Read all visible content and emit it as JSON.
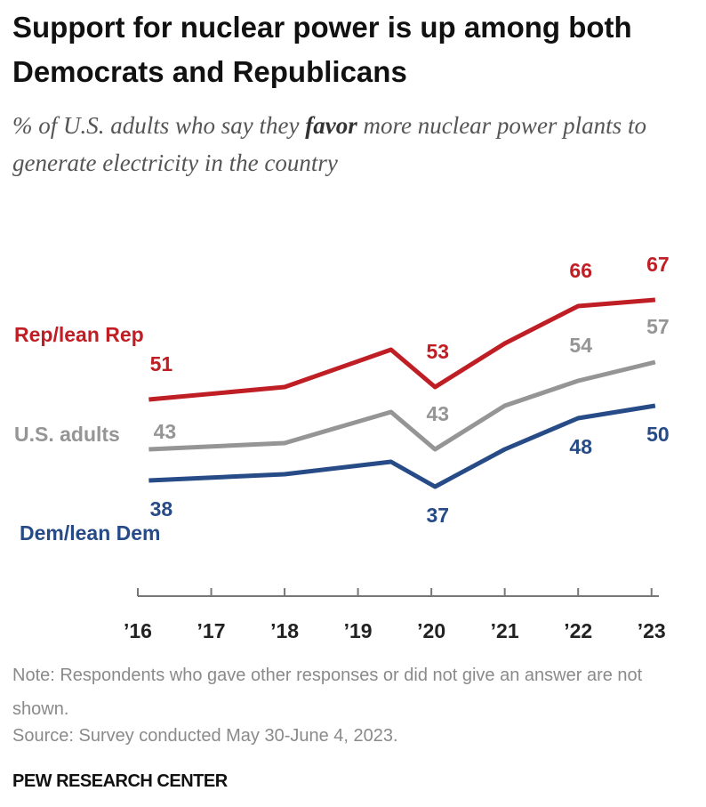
{
  "chart_data": {
    "type": "line",
    "title": "Support for nuclear power is up among both Democrats and Republicans",
    "subtitle": [
      "% of U.S. adults who say they ",
      "favor",
      " more nuclear power plants to generate electricity in the country"
    ],
    "x": [
      2016.15,
      2018,
      2019.45,
      2020.05,
      2021,
      2022,
      2023.05
    ],
    "series": [
      {
        "name": "Rep/lean Rep",
        "color": "#bf1e24",
        "values": [
          51,
          53,
          59,
          53,
          60,
          66,
          67
        ]
      },
      {
        "name": "U.S. adults",
        "color": "#959595",
        "values": [
          43,
          44,
          49,
          43,
          50,
          54,
          57
        ]
      },
      {
        "name": "Dem/lean Dem",
        "color": "#264b87",
        "values": [
          38,
          39,
          41,
          37,
          43,
          48,
          50
        ]
      }
    ],
    "labeled_points": [
      0,
      3,
      5,
      6
    ],
    "xlim": [
      2016,
      2023.1
    ],
    "xticks": [
      {
        "value": 2016,
        "label": "’16"
      },
      {
        "value": 2017,
        "label": "’17"
      },
      {
        "value": 2018,
        "label": "’18"
      },
      {
        "value": 2019,
        "label": "’19"
      },
      {
        "value": 2020,
        "label": "’20"
      },
      {
        "value": 2021,
        "label": "’21"
      },
      {
        "value": 2022,
        "label": "’22"
      },
      {
        "value": 2023,
        "label": "’23"
      }
    ],
    "ylim": [
      20,
      70
    ],
    "note": "Note: Respondents who gave other responses or did not give an answer are not shown.",
    "source": "Source: Survey conducted May 30-June 4, 2023.",
    "footer": "PEW RESEARCH CENTER"
  }
}
